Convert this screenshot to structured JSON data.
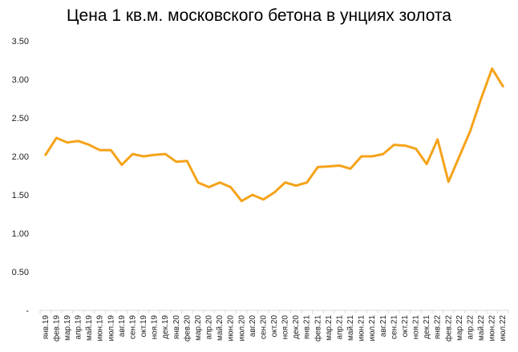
{
  "chart_data": {
    "type": "line",
    "title": "Цена 1 кв.м. московского бетона в унциях золота",
    "xlabel": "",
    "ylabel": "",
    "ylim": [
      0,
      3.5
    ],
    "y_ticks": [
      "-",
      "0.50",
      "1.00",
      "1.50",
      "2.00",
      "2.50",
      "3.00",
      "3.50"
    ],
    "grid": false,
    "legend": "none",
    "categories": [
      "янв.19",
      "фев.19",
      "мар.19",
      "апр.19",
      "май.19",
      "июн.19",
      "июл.19",
      "авг.19",
      "сен.19",
      "окт.19",
      "ноя.19",
      "дек.19",
      "янв.20",
      "фев.20",
      "мар.20",
      "апр.20",
      "май.20",
      "июн.20",
      "июл.20",
      "авг.20",
      "сен.20",
      "окт.20",
      "ноя.20",
      "дек.20",
      "янв.21",
      "фев.21",
      "мар.21",
      "апр.21",
      "май.21",
      "июн.21",
      "июл.21",
      "авг.21",
      "сен.21",
      "окт.21",
      "ноя.21",
      "дек.21",
      "янв.22",
      "фев.22",
      "мар.22",
      "апр.22",
      "май.22",
      "июн.22",
      "июл.22"
    ],
    "series": [
      {
        "color": "#f5a31a",
        "values": [
          2.02,
          2.24,
          2.18,
          2.2,
          2.15,
          2.08,
          2.08,
          1.89,
          2.03,
          2.0,
          2.02,
          2.03,
          1.93,
          1.94,
          1.66,
          1.6,
          1.66,
          1.6,
          1.42,
          1.5,
          1.44,
          1.53,
          1.66,
          1.62,
          1.66,
          1.86,
          1.87,
          1.88,
          1.84,
          2.0,
          2.0,
          2.03,
          2.15,
          2.14,
          2.1,
          1.9,
          2.22,
          1.67,
          2.0,
          2.33,
          2.75,
          3.14,
          2.91
        ]
      }
    ]
  }
}
